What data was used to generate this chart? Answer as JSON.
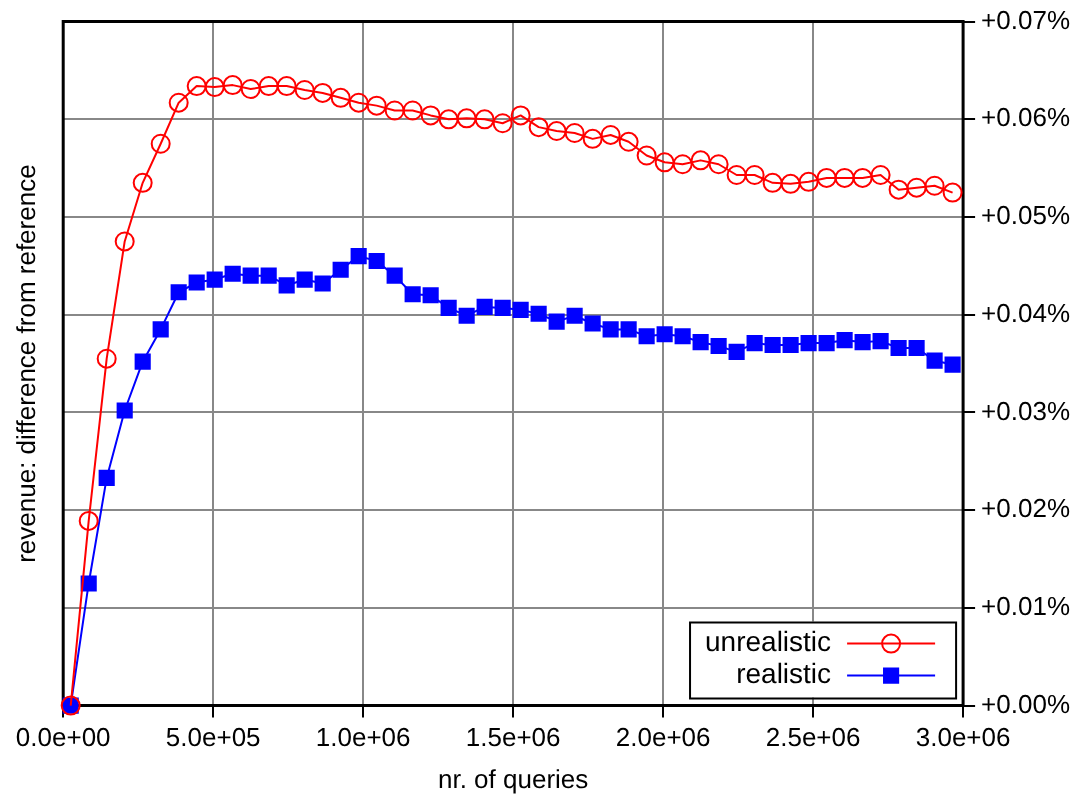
{
  "chart_data": {
    "type": "line",
    "xlabel": "nr. of queries",
    "ylabel": "revenue: difference from reference",
    "x": [
      25000,
      85000,
      145000,
      205000,
      265000,
      325000,
      385000,
      445000,
      505000,
      565000,
      625000,
      685000,
      745000,
      805000,
      865000,
      925000,
      985000,
      1045000,
      1105000,
      1165000,
      1225000,
      1285000,
      1345000,
      1405000,
      1465000,
      1525000,
      1585000,
      1645000,
      1705000,
      1765000,
      1825000,
      1885000,
      1945000,
      2005000,
      2065000,
      2125000,
      2185000,
      2245000,
      2305000,
      2365000,
      2425000,
      2485000,
      2545000,
      2605000,
      2665000,
      2725000,
      2785000,
      2845000,
      2905000,
      2965000
    ],
    "series": [
      {
        "name": "unrealistic",
        "color": "#ff0000",
        "marker": "circle",
        "values": [
          0,
          0.0189,
          0.0355,
          0.0475,
          0.0535,
          0.0575,
          0.0617,
          0.0634,
          0.0633,
          0.0635,
          0.0631,
          0.0634,
          0.0634,
          0.063,
          0.0627,
          0.0622,
          0.0617,
          0.0614,
          0.0609,
          0.0609,
          0.0604,
          0.06,
          0.0601,
          0.06,
          0.0596,
          0.0604,
          0.0592,
          0.0588,
          0.0586,
          0.058,
          0.0584,
          0.0577,
          0.0563,
          0.0556,
          0.0554,
          0.0558,
          0.0554,
          0.0543,
          0.0543,
          0.0535,
          0.0534,
          0.0536,
          0.054,
          0.054,
          0.054,
          0.0543,
          0.0528,
          0.053,
          0.0532,
          0.0525
        ]
      },
      {
        "name": "realistic",
        "color": "#0000ff",
        "marker": "square",
        "values": [
          0,
          0.0125,
          0.0233,
          0.0302,
          0.0352,
          0.0385,
          0.0423,
          0.0433,
          0.0436,
          0.0442,
          0.044,
          0.044,
          0.043,
          0.0436,
          0.0432,
          0.0446,
          0.046,
          0.0455,
          0.044,
          0.0421,
          0.042,
          0.0407,
          0.0399,
          0.0408,
          0.0407,
          0.0405,
          0.0401,
          0.0393,
          0.0399,
          0.0391,
          0.0385,
          0.0385,
          0.0378,
          0.038,
          0.0378,
          0.0372,
          0.0368,
          0.0362,
          0.0371,
          0.0369,
          0.0369,
          0.0371,
          0.0371,
          0.0374,
          0.0372,
          0.0373,
          0.0366,
          0.0366,
          0.0353,
          0.0349
        ]
      }
    ],
    "xlim": [
      0,
      3000000
    ],
    "xticks": [
      {
        "value": 0,
        "label": "0.0e+00"
      },
      {
        "value": 500000,
        "label": "5.0e+05"
      },
      {
        "value": 1000000,
        "label": "1.0e+06"
      },
      {
        "value": 1500000,
        "label": "1.5e+06"
      },
      {
        "value": 2000000,
        "label": "2.0e+06"
      },
      {
        "value": 2500000,
        "label": "2.5e+06"
      },
      {
        "value": 3000000,
        "label": "3.0e+06"
      }
    ],
    "ylim": [
      0,
      0.07
    ],
    "yticks": [
      {
        "value": 0,
        "label": "+0.00%"
      },
      {
        "value": 0.01,
        "label": "+0.01%"
      },
      {
        "value": 0.02,
        "label": "+0.02%"
      },
      {
        "value": 0.03,
        "label": "+0.03%"
      },
      {
        "value": 0.04,
        "label": "+0.04%"
      },
      {
        "value": 0.05,
        "label": "+0.05%"
      },
      {
        "value": 0.06,
        "label": "+0.06%"
      },
      {
        "value": 0.07,
        "label": "+0.07%"
      }
    ],
    "grid": true,
    "legend": "bottom right",
    "line_style": "solid"
  }
}
